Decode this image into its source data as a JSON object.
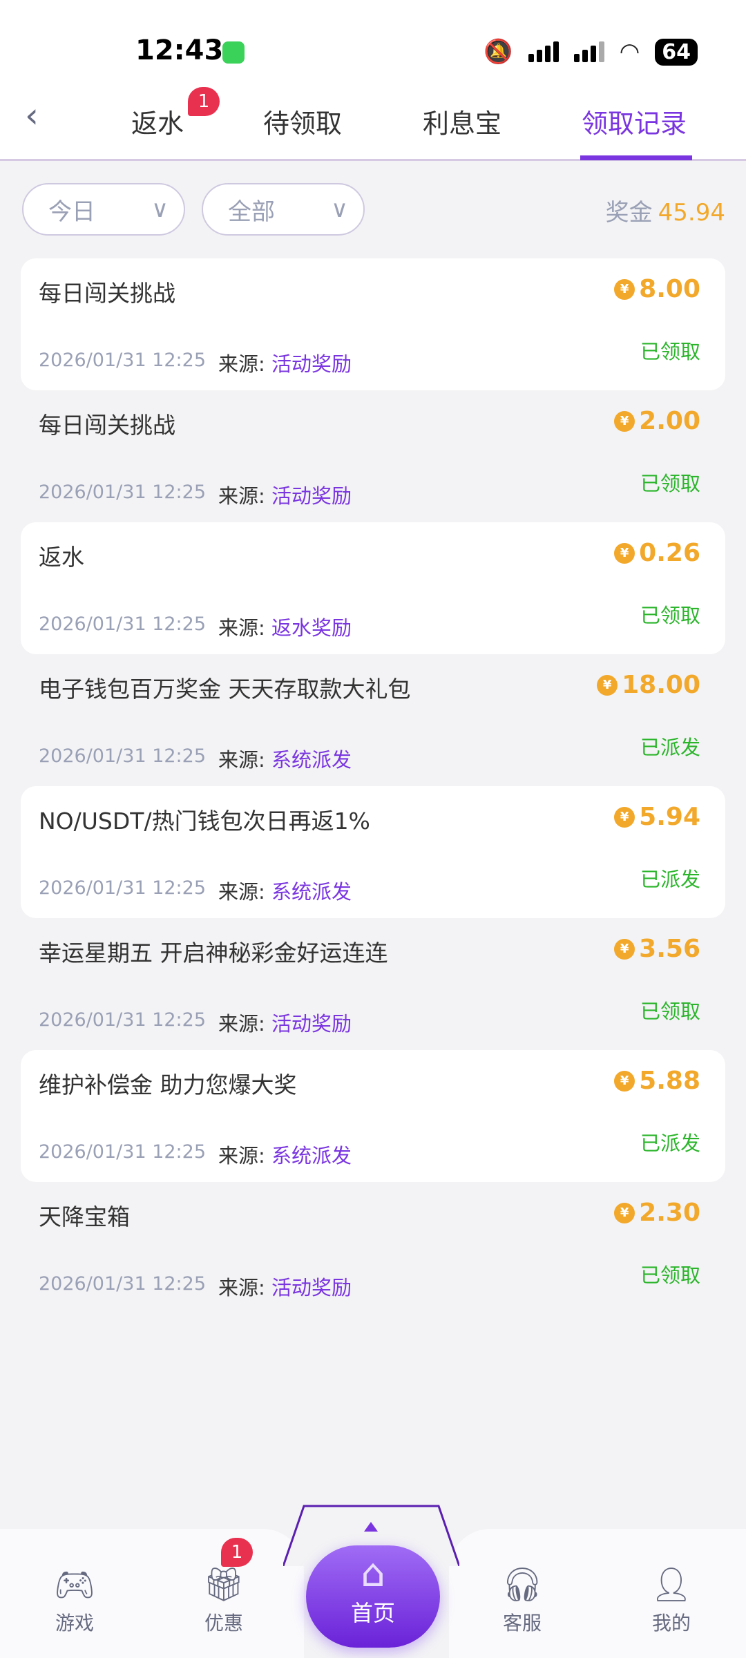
{
  "status_bar": {
    "time": "12:43",
    "battery": "64"
  },
  "tabs": [
    {
      "label": "返水",
      "badge": "1"
    },
    {
      "label": "待领取"
    },
    {
      "label": "利息宝"
    },
    {
      "label": "领取记录",
      "active": true
    }
  ],
  "filters": {
    "date": "今日",
    "type": "全部"
  },
  "prize": {
    "label": "奖金",
    "value": "45.94"
  },
  "source_label": "来源:",
  "records": [
    {
      "title": "每日闯关挑战",
      "amount": "8.00",
      "status": "已领取",
      "date": "2026/01/31 12:25",
      "source": "活动奖励"
    },
    {
      "title": "每日闯关挑战",
      "amount": "2.00",
      "status": "已领取",
      "date": "2026/01/31 12:25",
      "source": "活动奖励"
    },
    {
      "title": "返水",
      "amount": "0.26",
      "status": "已领取",
      "date": "2026/01/31 12:25",
      "source": "返水奖励"
    },
    {
      "title": "电子钱包百万奖金 天天存取款大礼包",
      "amount": "18.00",
      "status": "已派发",
      "date": "2026/01/31 12:25",
      "source": "系统派发"
    },
    {
      "title": "NO/USDT/热门钱包次日再返1%",
      "amount": "5.94",
      "status": "已派发",
      "date": "2026/01/31 12:25",
      "source": "系统派发"
    },
    {
      "title": "幸运星期五 开启神秘彩金好运连连",
      "amount": "3.56",
      "status": "已领取",
      "date": "2026/01/31 12:25",
      "source": "活动奖励"
    },
    {
      "title": "维护补偿金 助力您爆大奖",
      "amount": "5.88",
      "status": "已派发",
      "date": "2026/01/31 12:25",
      "source": "系统派发"
    },
    {
      "title": "天降宝箱",
      "amount": "2.30",
      "status": "已领取",
      "date": "2026/01/31 12:25",
      "source": "活动奖励"
    }
  ],
  "bottom_nav": [
    {
      "label": "游戏",
      "icon": "gamepad-icon"
    },
    {
      "label": "优惠",
      "icon": "gift-icon",
      "badge": "1"
    },
    {
      "label": "首页",
      "icon": "home-icon"
    },
    {
      "label": "客服",
      "icon": "headset-icon"
    },
    {
      "label": "我的",
      "icon": "user-icon"
    }
  ],
  "colors": {
    "accent": "#7a35e0",
    "amount": "#f2a82a",
    "status": "#2bb52b",
    "badge": "#e8304f"
  }
}
